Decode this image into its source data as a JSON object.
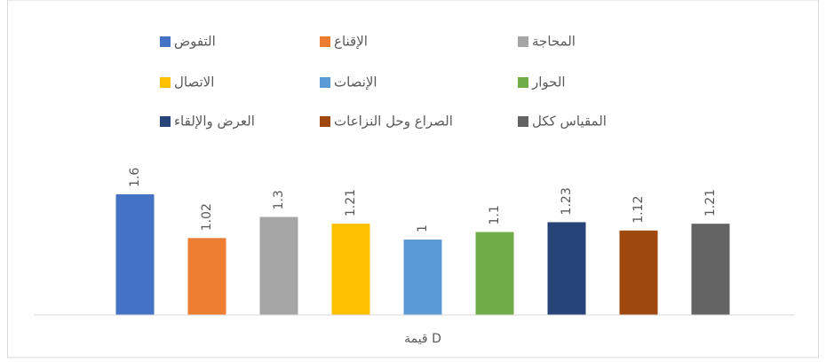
{
  "chart_data": {
    "type": "bar",
    "categories": [
      "قيمة D"
    ],
    "ylim": [
      0,
      2
    ],
    "series": [
      {
        "name": "التفوض",
        "color": "#4472c4",
        "values": [
          1.6
        ]
      },
      {
        "name": "الإقناع",
        "color": "#ed7d31",
        "values": [
          1.02
        ]
      },
      {
        "name": "المحاجة",
        "color": "#a5a5a5",
        "values": [
          1.3
        ]
      },
      {
        "name": "الاتصال",
        "color": "#ffc000",
        "values": [
          1.21
        ]
      },
      {
        "name": "الإنصات",
        "color": "#5b9bd5",
        "values": [
          1
        ]
      },
      {
        "name": "الحوار",
        "color": "#70ad47",
        "values": [
          1.1
        ]
      },
      {
        "name": "العرض والإلقاء",
        "color": "#264478",
        "values": [
          1.23
        ]
      },
      {
        "name": "الصراع وحل النزاعات",
        "color": "#9e480e",
        "values": [
          1.12
        ]
      },
      {
        "name": "المقياس ككل",
        "color": "#636363",
        "values": [
          1.21
        ]
      }
    ]
  }
}
